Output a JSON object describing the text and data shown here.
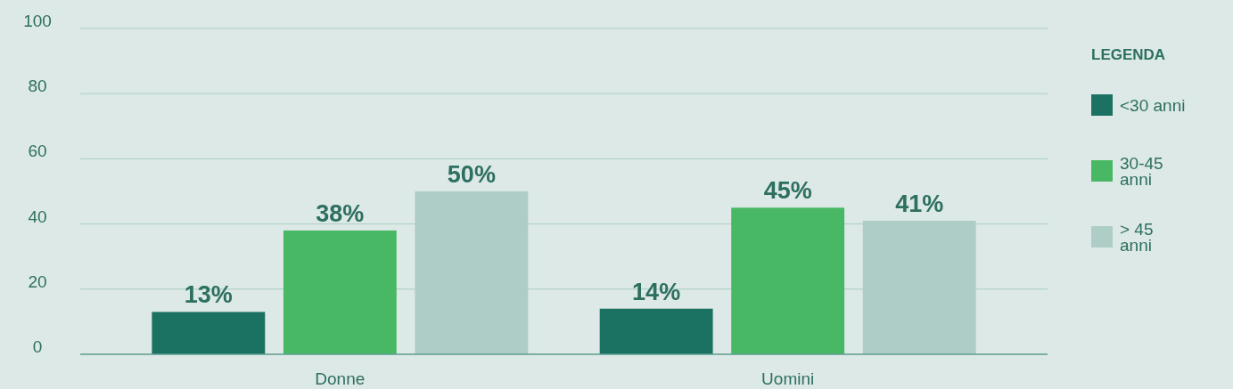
{
  "chart_data": {
    "type": "bar",
    "categories": [
      "Donne",
      "Uomini"
    ],
    "series": [
      {
        "name": "<30 anni",
        "color": "#1b7262",
        "values": [
          13,
          14
        ],
        "value_labels": [
          "13%",
          "14%"
        ]
      },
      {
        "name": "30-45 anni",
        "color": "#49b864",
        "values": [
          38,
          45
        ],
        "value_labels": [
          "38%",
          "45%"
        ]
      },
      {
        "name": "> 45 anni",
        "color": "#aecdc7",
        "values": [
          50,
          41
        ],
        "value_labels": [
          "50%",
          "41%"
        ]
      }
    ],
    "ylim": [
      0,
      100
    ],
    "yticks": [
      0,
      20,
      40,
      60,
      80,
      100
    ],
    "grid": "y",
    "legend": "right",
    "legend_title": "LEGENDA"
  }
}
